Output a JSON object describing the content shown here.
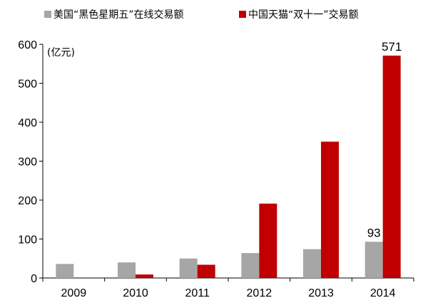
{
  "chart_data": {
    "type": "bar",
    "title": "",
    "xlabel": "",
    "ylabel": "",
    "unit_label": "(亿元)",
    "categories": [
      "2009",
      "2010",
      "2011",
      "2012",
      "2013",
      "2014"
    ],
    "ylim": [
      0,
      600
    ],
    "yticks": [
      0,
      100,
      200,
      300,
      400,
      500,
      600
    ],
    "grid": false,
    "legend_position": "top",
    "series": [
      {
        "name": "美国“黑色星期五”在线交易额",
        "color": "#a6a6a6",
        "values": [
          36,
          40,
          50,
          64,
          74,
          93
        ]
      },
      {
        "name": "中国天猫“双十一”交易额",
        "color": "#c00000",
        "values": [
          0,
          9,
          34,
          191,
          350,
          571
        ]
      }
    ],
    "data_labels": [
      {
        "series": 0,
        "category": "2014",
        "text": "93"
      },
      {
        "series": 1,
        "category": "2014",
        "text": "571"
      }
    ]
  }
}
